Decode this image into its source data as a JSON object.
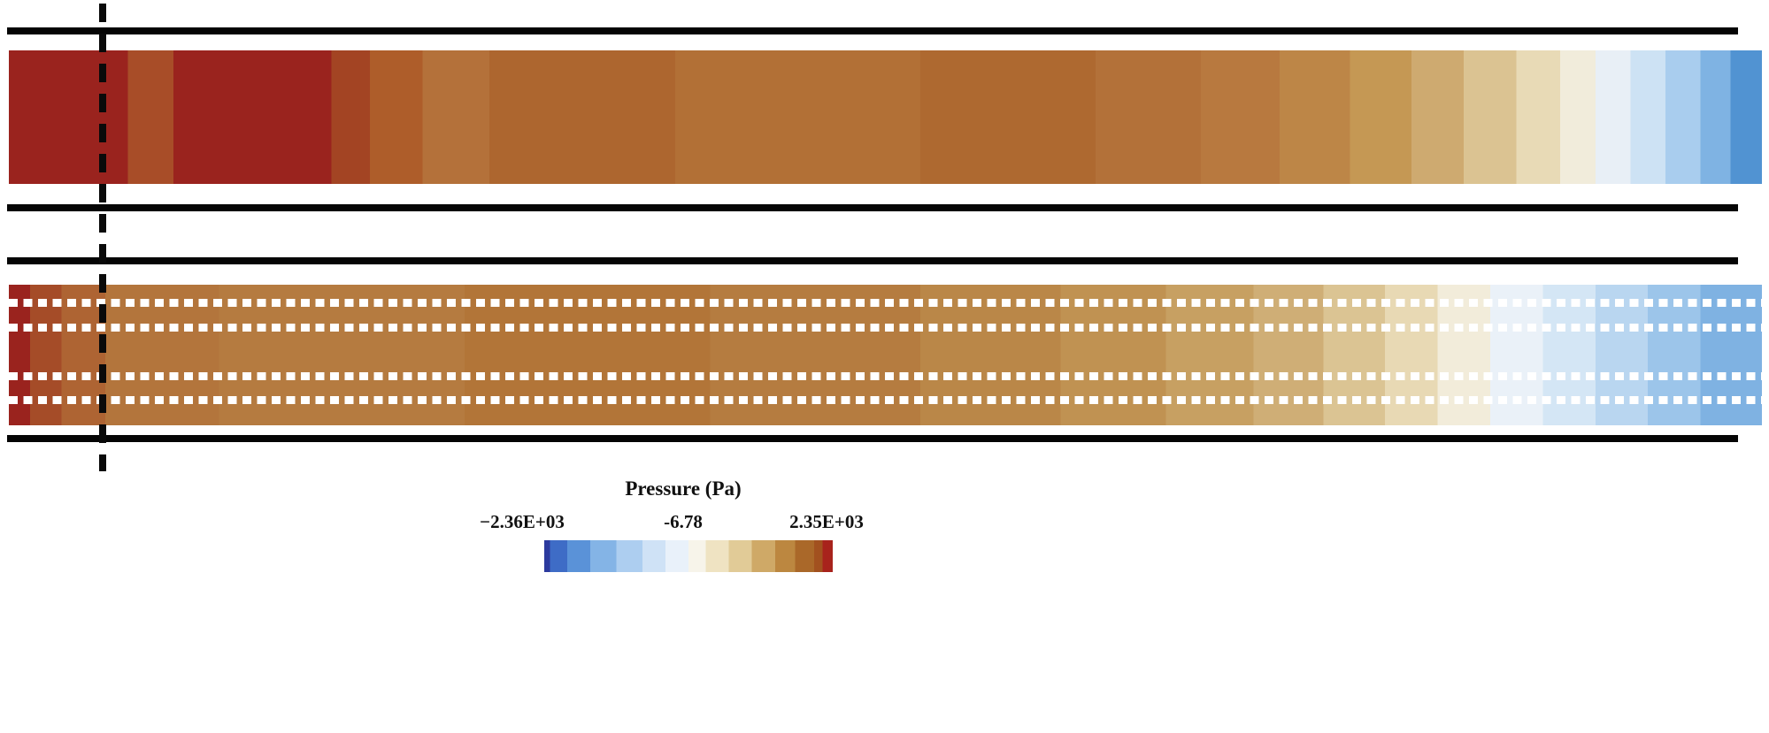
{
  "legend": {
    "title": "Pressure (Pa)",
    "tick_min": "−2.36E+03",
    "tick_mid": "-6.78",
    "tick_max": "2.35E+03"
  },
  "chart_data": {
    "type": "heatmap",
    "title": "Pressure (Pa)",
    "description": "Two horizontal channel pressure-contour panels (flow left to right). Top panel: smooth channel. Bottom panel: channel with four rows of white pin-fin/perforation marks. A vertical dashed reference line crosses both channels near the inlet. Pressure decreases from ~2.35E+03 Pa (dark red, inlet/left) through ~-6.78 Pa (white) to ~-2.36E+03 Pa (blue, outlet/right).",
    "colorbar": {
      "label": "Pressure (Pa)",
      "min": -2360,
      "mid": -6.78,
      "max": 2350,
      "tick_labels": [
        "−2.36E+03",
        "-6.78",
        "2.35E+03"
      ],
      "orientation": "horizontal",
      "stops": [
        {
          "color": "#2c3a9e",
          "from": 0,
          "to": 2
        },
        {
          "color": "#3e6cc6",
          "from": 2,
          "to": 8
        },
        {
          "color": "#5a92d8",
          "from": 8,
          "to": 16
        },
        {
          "color": "#84b4e6",
          "from": 16,
          "to": 25
        },
        {
          "color": "#adcef0",
          "from": 25,
          "to": 34
        },
        {
          "color": "#cfe2f6",
          "from": 34,
          "to": 42
        },
        {
          "color": "#e9f1fa",
          "from": 42,
          "to": 50
        },
        {
          "color": "#f7f4ea",
          "from": 50,
          "to": 56
        },
        {
          "color": "#efe3c2",
          "from": 56,
          "to": 64
        },
        {
          "color": "#e1cb97",
          "from": 64,
          "to": 72
        },
        {
          "color": "#cfa967",
          "from": 72,
          "to": 80
        },
        {
          "color": "#bc8740",
          "from": 80,
          "to": 87
        },
        {
          "color": "#aa6829",
          "from": 87,
          "to": 93.5
        },
        {
          "color": "#a2511f",
          "from": 93.5,
          "to": 96.5
        },
        {
          "color": "#a8231c",
          "from": 96.5,
          "to": 100
        }
      ]
    },
    "panels": [
      {
        "name": "smooth-channel",
        "value_range_pa": [
          2350,
          -2360
        ],
        "flow_direction": "left-to-right",
        "bands": [
          {
            "color": "#9a231e",
            "from": 0,
            "to": 6.8
          },
          {
            "color": "#a84d28",
            "from": 6.8,
            "to": 9.4
          },
          {
            "color": "#9a231e",
            "from": 9.4,
            "to": 18.4
          },
          {
            "color": "#a34423",
            "from": 18.4,
            "to": 20.6
          },
          {
            "color": "#ae5d2a",
            "from": 20.6,
            "to": 23.6
          },
          {
            "color": "#b4713a",
            "from": 23.6,
            "to": 27.4
          },
          {
            "color": "#ad662f",
            "from": 27.4,
            "to": 38
          },
          {
            "color": "#b27036",
            "from": 38,
            "to": 52
          },
          {
            "color": "#ae6930",
            "from": 52,
            "to": 62
          },
          {
            "color": "#b37139",
            "from": 62,
            "to": 68
          },
          {
            "color": "#b8793f",
            "from": 68,
            "to": 72.5
          },
          {
            "color": "#bd8647",
            "from": 72.5,
            "to": 76.5
          },
          {
            "color": "#c59854",
            "from": 76.5,
            "to": 80
          },
          {
            "color": "#ceaa70",
            "from": 80,
            "to": 83
          },
          {
            "color": "#dbc392",
            "from": 83,
            "to": 86
          },
          {
            "color": "#e8dab6",
            "from": 86,
            "to": 88.5
          },
          {
            "color": "#f1ecdb",
            "from": 88.5,
            "to": 90.5
          },
          {
            "color": "#e8eff6",
            "from": 90.5,
            "to": 92.5
          },
          {
            "color": "#cde2f4",
            "from": 92.5,
            "to": 94.5
          },
          {
            "color": "#a9cdee",
            "from": 94.5,
            "to": 96.5
          },
          {
            "color": "#7fb3e3",
            "from": 96.5,
            "to": 98.2
          },
          {
            "color": "#5193d2",
            "from": 98.2,
            "to": 100
          }
        ]
      },
      {
        "name": "pin-fin-channel",
        "value_range_pa": [
          2350,
          -2360
        ],
        "flow_direction": "left-to-right",
        "pin_rows": 4,
        "bands": [
          {
            "color": "#9a231e",
            "from": 0,
            "to": 1.2
          },
          {
            "color": "#a54c28",
            "from": 1.2,
            "to": 3
          },
          {
            "color": "#ae6433",
            "from": 3,
            "to": 5.5
          },
          {
            "color": "#b3753c",
            "from": 5.5,
            "to": 12
          },
          {
            "color": "#b57b40",
            "from": 12,
            "to": 26
          },
          {
            "color": "#b27538",
            "from": 26,
            "to": 40
          },
          {
            "color": "#b57c40",
            "from": 40,
            "to": 52
          },
          {
            "color": "#ba8748",
            "from": 52,
            "to": 60
          },
          {
            "color": "#c09252",
            "from": 60,
            "to": 66
          },
          {
            "color": "#c7a062",
            "from": 66,
            "to": 71
          },
          {
            "color": "#cfae76",
            "from": 71,
            "to": 75
          },
          {
            "color": "#dbc493",
            "from": 75,
            "to": 78.5
          },
          {
            "color": "#e8d9b4",
            "from": 78.5,
            "to": 81.5
          },
          {
            "color": "#f2ecda",
            "from": 81.5,
            "to": 84.5
          },
          {
            "color": "#eaf1f8",
            "from": 84.5,
            "to": 87.5
          },
          {
            "color": "#d4e6f5",
            "from": 87.5,
            "to": 90.5
          },
          {
            "color": "#b9d6f0",
            "from": 90.5,
            "to": 93.5
          },
          {
            "color": "#9cc5ea",
            "from": 93.5,
            "to": 96.5
          },
          {
            "color": "#7fb2e2",
            "from": 96.5,
            "to": 100
          }
        ]
      }
    ],
    "annotations": [
      "vertical dashed reference line near channel inlet crossing both panels"
    ],
    "wall_color": "#050505",
    "pin_mark_color": "#ffffff"
  }
}
